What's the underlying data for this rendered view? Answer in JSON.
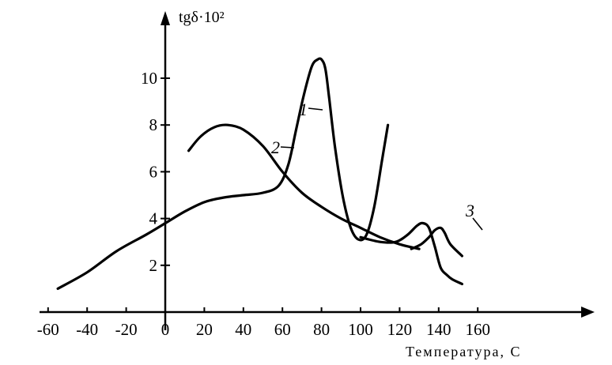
{
  "chart_data": {
    "type": "line",
    "title": "",
    "ylabel": "tgδ·10²",
    "xlabel": "Температура, С",
    "xlim": [
      -60,
      160
    ],
    "ylim": [
      0,
      11
    ],
    "x_ticks": [
      -60,
      -40,
      -20,
      0,
      20,
      40,
      60,
      80,
      100,
      120,
      140,
      160
    ],
    "x_tick_labels": [
      "-60",
      "-40",
      "-20",
      "0",
      "20",
      "40",
      "60",
      "80",
      "100",
      "120",
      "140",
      "160"
    ],
    "y_ticks": [
      2,
      4,
      6,
      8,
      10
    ],
    "y_tick_labels": [
      "2",
      "4",
      "6",
      "8",
      "10"
    ],
    "grid": false,
    "legend": "inline labels",
    "series": [
      {
        "name": "1",
        "x": [
          -55,
          -40,
          -25,
          -10,
          0,
          10,
          20,
          30,
          40,
          50,
          58,
          63,
          67,
          71,
          75,
          78,
          80,
          82,
          84,
          87,
          91,
          95,
          99,
          103,
          107,
          111,
          114
        ],
        "y": [
          1.0,
          1.7,
          2.6,
          3.3,
          3.8,
          4.3,
          4.7,
          4.9,
          5.0,
          5.1,
          5.4,
          6.3,
          7.8,
          9.3,
          10.5,
          10.8,
          10.8,
          10.4,
          9.1,
          7.0,
          4.9,
          3.6,
          3.1,
          3.3,
          4.5,
          6.5,
          8.0
        ]
      },
      {
        "name": "2",
        "x": [
          12,
          18,
          25,
          32,
          40,
          50,
          60,
          70,
          80,
          90,
          100,
          110,
          120,
          130
        ],
        "y": [
          6.9,
          7.5,
          7.9,
          8.0,
          7.8,
          7.1,
          6.0,
          5.1,
          4.5,
          4.0,
          3.6,
          3.2,
          2.9,
          2.7
        ]
      },
      {
        "name": "3",
        "x": [
          100,
          110,
          118,
          124,
          129,
          132,
          135,
          138,
          141,
          144,
          147,
          152
        ],
        "y": [
          3.2,
          3.0,
          3.0,
          3.3,
          3.7,
          3.8,
          3.6,
          2.8,
          1.9,
          1.6,
          1.4,
          1.2
        ]
      },
      {
        "name": "3",
        "x": [
          126,
          131,
          135,
          138,
          141,
          143,
          146,
          152
        ],
        "y": [
          2.7,
          2.9,
          3.2,
          3.5,
          3.6,
          3.4,
          2.9,
          2.4
        ]
      }
    ]
  }
}
